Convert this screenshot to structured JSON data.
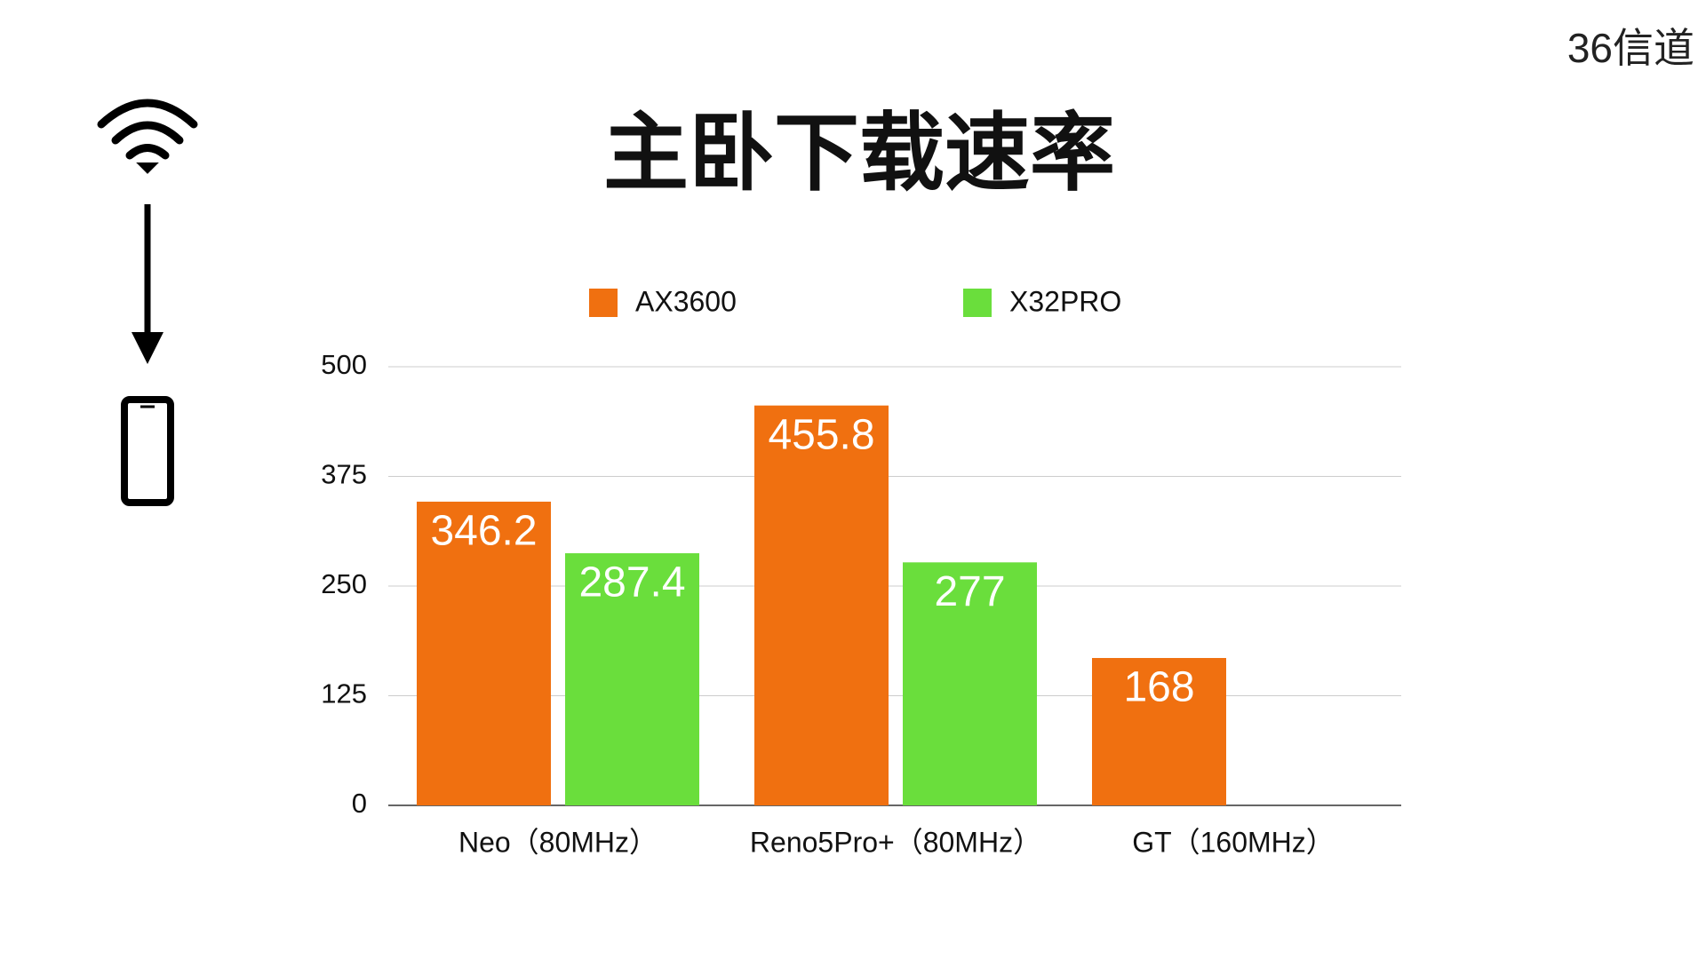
{
  "corner_label": "36信道",
  "chart_data": {
    "type": "bar",
    "title": "主卧下载速率",
    "categories": [
      "Neo（80MHz）",
      "Reno5Pro+（80MHz）",
      "GT（160MHz）"
    ],
    "series": [
      {
        "name": "AX3600",
        "color": "#f07010",
        "values": [
          346.2,
          455.8,
          168
        ]
      },
      {
        "name": "X32PRO",
        "color": "#6ade3c",
        "values": [
          287.4,
          277,
          null
        ]
      }
    ],
    "ylim": [
      0,
      500
    ],
    "yticks": [
      0,
      125,
      250,
      375,
      500
    ],
    "grid": true
  }
}
